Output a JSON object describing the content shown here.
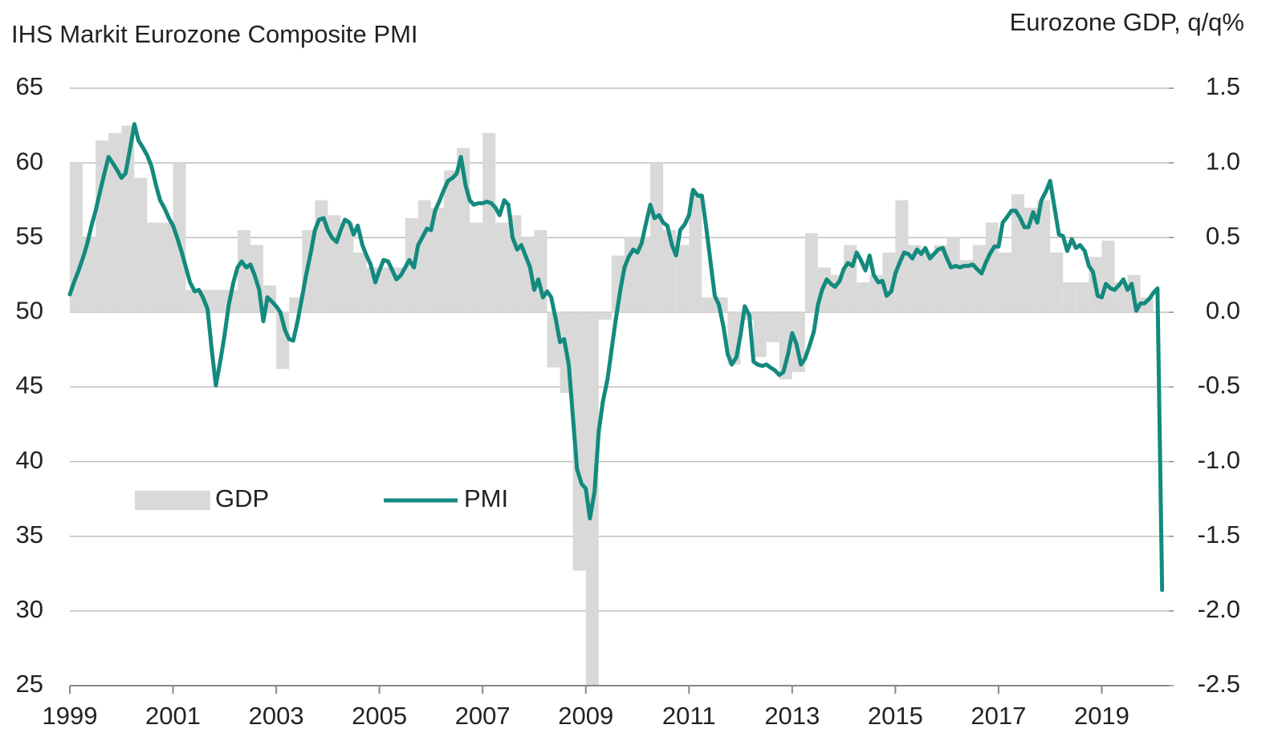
{
  "chart_data": {
    "type": "combo",
    "ylabel": "IHS Markit Eurozone Composite PMI",
    "y2label": "Eurozone GDP, q/q%",
    "xlim": [
      1999,
      2020.3
    ],
    "xticks": [
      1999,
      2001,
      2003,
      2005,
      2007,
      2009,
      2011,
      2013,
      2015,
      2017,
      2019
    ],
    "ylim": [
      25,
      65
    ],
    "yticks": [
      25,
      30,
      35,
      40,
      45,
      50,
      55,
      60,
      65
    ],
    "y2lim": [
      -2.5,
      1.5
    ],
    "y2ticks": [
      -2.5,
      {
        "value": -2,
        "label": "-2.0"
      },
      -1.5,
      {
        "value": -1,
        "label": "-1.0"
      },
      -0.5,
      {
        "value": 0,
        "label": "0.0"
      },
      0.5,
      {
        "value": 1,
        "label": "1.0"
      },
      1.5
    ],
    "grid": true,
    "legend": "center-left",
    "series": [
      {
        "name": "GDP",
        "type": "bar",
        "axis": "y2",
        "color": "#d9d9d9",
        "x": [
          1999,
          1999.25,
          1999.5,
          1999.75,
          2000,
          2000.25,
          2000.5,
          2000.75,
          2001,
          2001.25,
          2001.5,
          2001.75,
          2002,
          2002.25,
          2002.5,
          2002.75,
          2003,
          2003.25,
          2003.5,
          2003.75,
          2004,
          2004.25,
          2004.5,
          2004.75,
          2005,
          2005.25,
          2005.5,
          2005.75,
          2006,
          2006.25,
          2006.5,
          2006.75,
          2007,
          2007.25,
          2007.5,
          2007.75,
          2008,
          2008.25,
          2008.5,
          2008.75,
          2009,
          2009.25,
          2009.5,
          2009.75,
          2010,
          2010.25,
          2010.5,
          2010.75,
          2011,
          2011.25,
          2011.5,
          2011.75,
          2012,
          2012.25,
          2012.5,
          2012.75,
          2013,
          2013.25,
          2013.5,
          2013.75,
          2014,
          2014.25,
          2014.5,
          2014.75,
          2015,
          2015.25,
          2015.5,
          2015.75,
          2016,
          2016.25,
          2016.5,
          2016.75,
          2017,
          2017.25,
          2017.5,
          2017.75,
          2018,
          2018.25,
          2018.5,
          2018.75,
          2019,
          2019.25,
          2019.5,
          2019.75
        ],
        "values": [
          1.0,
          0.5,
          1.15,
          1.2,
          1.25,
          0.9,
          0.6,
          0.6,
          1.0,
          0.15,
          0.15,
          0.15,
          0.15,
          0.55,
          0.45,
          0.18,
          -0.38,
          0.1,
          0.55,
          0.75,
          0.65,
          0.6,
          0.4,
          0.3,
          0.3,
          0.3,
          0.63,
          0.75,
          0.7,
          0.95,
          1.1,
          0.6,
          1.2,
          0.6,
          0.65,
          0.5,
          0.55,
          -0.37,
          -0.54,
          -1.73,
          -2.5,
          -0.05,
          0.38,
          0.5,
          0.5,
          1.0,
          0.55,
          0.45,
          0.8,
          0.1,
          0.1,
          -0.35,
          -0.05,
          -0.3,
          -0.2,
          -0.45,
          -0.4,
          0.53,
          0.3,
          0.25,
          0.45,
          0.2,
          0.25,
          0.4,
          0.75,
          0.45,
          0.4,
          0.45,
          0.5,
          0.35,
          0.45,
          0.6,
          0.4,
          0.79,
          0.7,
          0.75,
          0.4,
          0.2,
          0.2,
          0.37,
          0.48,
          0.2,
          0.25,
          0.1
        ]
      },
      {
        "name": "PMI",
        "type": "line",
        "color": "#138a7e",
        "x": [
          1999,
          1999.08,
          1999.17,
          1999.25,
          1999.33,
          1999.42,
          1999.5,
          1999.58,
          1999.67,
          1999.75,
          1999.83,
          1999.92,
          2000,
          2000.08,
          2000.17,
          2000.25,
          2000.33,
          2000.42,
          2000.5,
          2000.58,
          2000.67,
          2000.75,
          2000.83,
          2000.92,
          2001,
          2001.08,
          2001.17,
          2001.25,
          2001.33,
          2001.42,
          2001.5,
          2001.58,
          2001.67,
          2001.75,
          2001.83,
          2001.92,
          2002,
          2002.08,
          2002.17,
          2002.25,
          2002.33,
          2002.42,
          2002.5,
          2002.58,
          2002.67,
          2002.75,
          2002.83,
          2002.92,
          2003,
          2003.08,
          2003.17,
          2003.25,
          2003.33,
          2003.42,
          2003.5,
          2003.58,
          2003.67,
          2003.75,
          2003.83,
          2003.92,
          2004,
          2004.08,
          2004.17,
          2004.25,
          2004.33,
          2004.42,
          2004.5,
          2004.58,
          2004.67,
          2004.75,
          2004.83,
          2004.92,
          2005,
          2005.08,
          2005.17,
          2005.25,
          2005.33,
          2005.42,
          2005.5,
          2005.58,
          2005.67,
          2005.75,
          2005.83,
          2005.92,
          2006,
          2006.08,
          2006.17,
          2006.25,
          2006.33,
          2006.42,
          2006.5,
          2006.58,
          2006.67,
          2006.75,
          2006.83,
          2006.92,
          2007,
          2007.08,
          2007.17,
          2007.25,
          2007.33,
          2007.42,
          2007.5,
          2007.58,
          2007.67,
          2007.75,
          2007.83,
          2007.92,
          2008,
          2008.08,
          2008.17,
          2008.25,
          2008.33,
          2008.42,
          2008.5,
          2008.58,
          2008.67,
          2008.75,
          2008.83,
          2008.92,
          2009,
          2009.08,
          2009.17,
          2009.25,
          2009.33,
          2009.42,
          2009.5,
          2009.58,
          2009.67,
          2009.75,
          2009.83,
          2009.92,
          2010,
          2010.08,
          2010.17,
          2010.25,
          2010.33,
          2010.42,
          2010.5,
          2010.58,
          2010.67,
          2010.75,
          2010.83,
          2010.92,
          2011,
          2011.08,
          2011.17,
          2011.25,
          2011.33,
          2011.42,
          2011.5,
          2011.58,
          2011.67,
          2011.75,
          2011.83,
          2011.92,
          2012,
          2012.08,
          2012.17,
          2012.25,
          2012.33,
          2012.42,
          2012.5,
          2012.58,
          2012.67,
          2012.75,
          2012.83,
          2012.92,
          2013,
          2013.08,
          2013.17,
          2013.25,
          2013.33,
          2013.42,
          2013.5,
          2013.58,
          2013.67,
          2013.75,
          2013.83,
          2013.92,
          2014,
          2014.08,
          2014.17,
          2014.25,
          2014.33,
          2014.42,
          2014.5,
          2014.58,
          2014.67,
          2014.75,
          2014.83,
          2014.92,
          2015,
          2015.08,
          2015.17,
          2015.25,
          2015.33,
          2015.42,
          2015.5,
          2015.58,
          2015.67,
          2015.75,
          2015.83,
          2015.92,
          2016,
          2016.08,
          2016.17,
          2016.25,
          2016.33,
          2016.42,
          2016.5,
          2016.58,
          2016.67,
          2016.75,
          2016.83,
          2016.92,
          2017,
          2017.08,
          2017.17,
          2017.25,
          2017.33,
          2017.42,
          2017.5,
          2017.58,
          2017.67,
          2017.75,
          2017.83,
          2017.92,
          2018,
          2018.08,
          2018.17,
          2018.25,
          2018.33,
          2018.42,
          2018.5,
          2018.58,
          2018.67,
          2018.75,
          2018.83,
          2018.92,
          2019,
          2019.08,
          2019.17,
          2019.25,
          2019.33,
          2019.42,
          2019.5,
          2019.58,
          2019.67,
          2019.75,
          2019.83,
          2019.92,
          2020,
          2020.08,
          2020.17
        ],
        "values": [
          51.2,
          52.0,
          52.8,
          53.6,
          54.5,
          55.8,
          56.8,
          58.0,
          59.3,
          60.4,
          60.0,
          59.5,
          59.0,
          59.3,
          61.0,
          62.6,
          61.5,
          61.0,
          60.5,
          59.8,
          58.5,
          57.5,
          57.0,
          56.3,
          55.8,
          55.0,
          54.0,
          53.0,
          52.0,
          51.4,
          51.5,
          51.0,
          50.2,
          47.5,
          45.1,
          46.8,
          48.5,
          50.5,
          52.0,
          53.0,
          53.4,
          53.0,
          53.2,
          52.5,
          51.5,
          49.4,
          51.0,
          50.7,
          50.4,
          50.0,
          48.8,
          48.2,
          48.1,
          49.5,
          51.0,
          52.5,
          54.0,
          55.5,
          56.2,
          56.3,
          55.5,
          55.0,
          54.7,
          55.5,
          56.2,
          56.0,
          55.2,
          55.8,
          54.5,
          53.8,
          53.2,
          52.0,
          52.8,
          53.5,
          53.4,
          52.8,
          52.2,
          52.5,
          53.0,
          53.5,
          53.0,
          54.5,
          55.0,
          55.6,
          55.5,
          56.8,
          57.5,
          58.2,
          58.8,
          59.0,
          59.3,
          60.4,
          58.5,
          57.5,
          57.2,
          57.3,
          57.3,
          57.4,
          57.3,
          57.0,
          56.5,
          57.5,
          57.2,
          55.0,
          54.2,
          54.5,
          53.8,
          53.0,
          51.5,
          52.2,
          51.0,
          51.4,
          51.0,
          49.5,
          48.0,
          48.2,
          46.5,
          43.0,
          39.5,
          38.5,
          38.2,
          36.2,
          38.0,
          42.0,
          44.0,
          45.5,
          47.5,
          49.5,
          51.5,
          53.0,
          53.7,
          54.2,
          54.0,
          54.6,
          56.0,
          57.2,
          56.3,
          56.5,
          56.0,
          55.8,
          54.5,
          53.8,
          55.5,
          55.9,
          56.5,
          58.2,
          57.8,
          57.8,
          55.8,
          53.3,
          51.1,
          50.5,
          49.0,
          47.2,
          46.5,
          47.0,
          48.5,
          50.4,
          49.8,
          46.7,
          46.5,
          46.4,
          46.5,
          46.3,
          46.1,
          45.8,
          46.0,
          47.2,
          48.6,
          47.9,
          46.5,
          46.9,
          47.7,
          48.7,
          50.5,
          51.5,
          52.2,
          51.9,
          51.7,
          52.1,
          52.9,
          53.3,
          53.1,
          54.0,
          53.5,
          52.8,
          53.8,
          52.5,
          52.0,
          52.1,
          51.1,
          51.4,
          52.6,
          53.3,
          54.0,
          53.9,
          53.6,
          54.2,
          53.9,
          54.3,
          53.6,
          53.9,
          54.2,
          54.3,
          53.6,
          53.0,
          53.1,
          53.0,
          53.1,
          53.1,
          53.2,
          52.9,
          52.6,
          53.3,
          53.9,
          54.4,
          54.4,
          56.0,
          56.4,
          56.8,
          56.8,
          56.3,
          55.7,
          55.7,
          56.7,
          56.0,
          57.5,
          58.1,
          58.8,
          57.1,
          55.2,
          55.1,
          54.1,
          54.9,
          54.3,
          54.5,
          54.1,
          53.1,
          52.7,
          51.1,
          51.0,
          51.9,
          51.6,
          51.5,
          51.8,
          52.2,
          51.5,
          51.9,
          50.1,
          50.6,
          50.6,
          50.9,
          51.3,
          51.6,
          31.4
        ]
      }
    ]
  }
}
